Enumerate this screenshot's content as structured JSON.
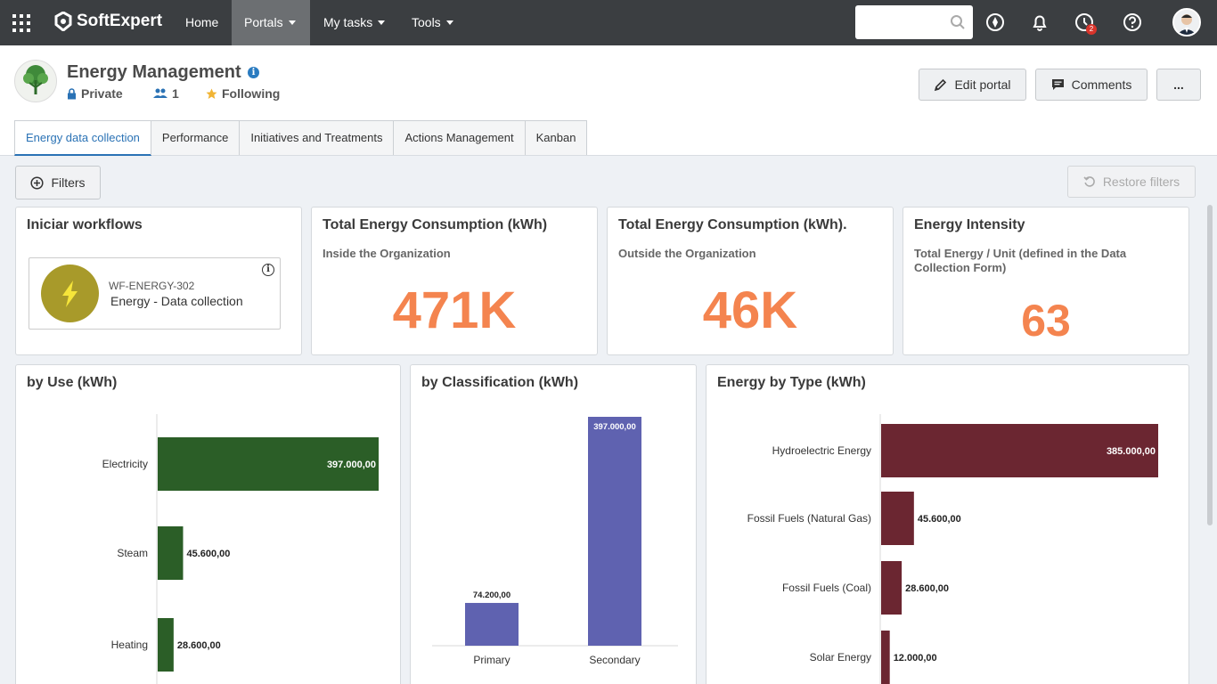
{
  "topbar": {
    "brand": "SoftExpert",
    "nav": [
      {
        "label": "Home",
        "dropdown": false,
        "active": false
      },
      {
        "label": "Portals",
        "dropdown": true,
        "active": true
      },
      {
        "label": "My tasks",
        "dropdown": true,
        "active": false
      },
      {
        "label": "Tools",
        "dropdown": true,
        "active": false
      }
    ],
    "search_placeholder": "",
    "notifications_badge": "2"
  },
  "portal": {
    "title": "Energy Management",
    "privacy": "Private",
    "members": "1",
    "following": "Following",
    "edit_label": "Edit portal",
    "comments_label": "Comments",
    "more_label": "..."
  },
  "tabs": [
    "Energy data collection",
    "Performance",
    "Initiatives and Treatments",
    "Actions Management",
    "Kanban"
  ],
  "toolbar": {
    "filters": "Filters",
    "restore": "Restore filters"
  },
  "workflows": {
    "title": "Iniciar workflows",
    "code": "WF-ENERGY-302",
    "name": "Energy - Data collection"
  },
  "kpis": [
    {
      "title": "Total Energy Consumption (kWh)",
      "subtitle": "Inside the Organization",
      "value": "471K"
    },
    {
      "title": "Total Energy Consumption (kWh).",
      "subtitle": "Outside the Organization",
      "value": "46K"
    },
    {
      "title": "Energy Intensity",
      "subtitle": "Total Energy / Unit (defined in the Data Collection Form)",
      "value": "63"
    }
  ],
  "chart_data": [
    {
      "type": "bar",
      "orientation": "horizontal",
      "title": "by Use (kWh)",
      "categories": [
        "Electricity",
        "Steam",
        "Heating"
      ],
      "values": [
        397000,
        45600,
        28600
      ],
      "labels": [
        "397.000,00",
        "45.600,00",
        "28.600,00"
      ],
      "color": "#2b5e27"
    },
    {
      "type": "bar",
      "orientation": "vertical",
      "title": "by Classification (kWh)",
      "categories": [
        "Primary",
        "Secondary"
      ],
      "values": [
        74200,
        397000
      ],
      "labels": [
        "74.200,00",
        "397.000,00"
      ],
      "color": "#5f62b0"
    },
    {
      "type": "bar",
      "orientation": "horizontal",
      "title": "Energy by Type (kWh)",
      "categories": [
        "Hydroelectric Energy",
        "Fossil Fuels (Natural Gas)",
        "Fossil Fuels (Coal)",
        "Solar Energy"
      ],
      "values": [
        385000,
        45600,
        28600,
        12000
      ],
      "labels": [
        "385.000,00",
        "45.600,00",
        "28.600,00",
        "12.000,00"
      ],
      "color": "#6b2631"
    }
  ]
}
